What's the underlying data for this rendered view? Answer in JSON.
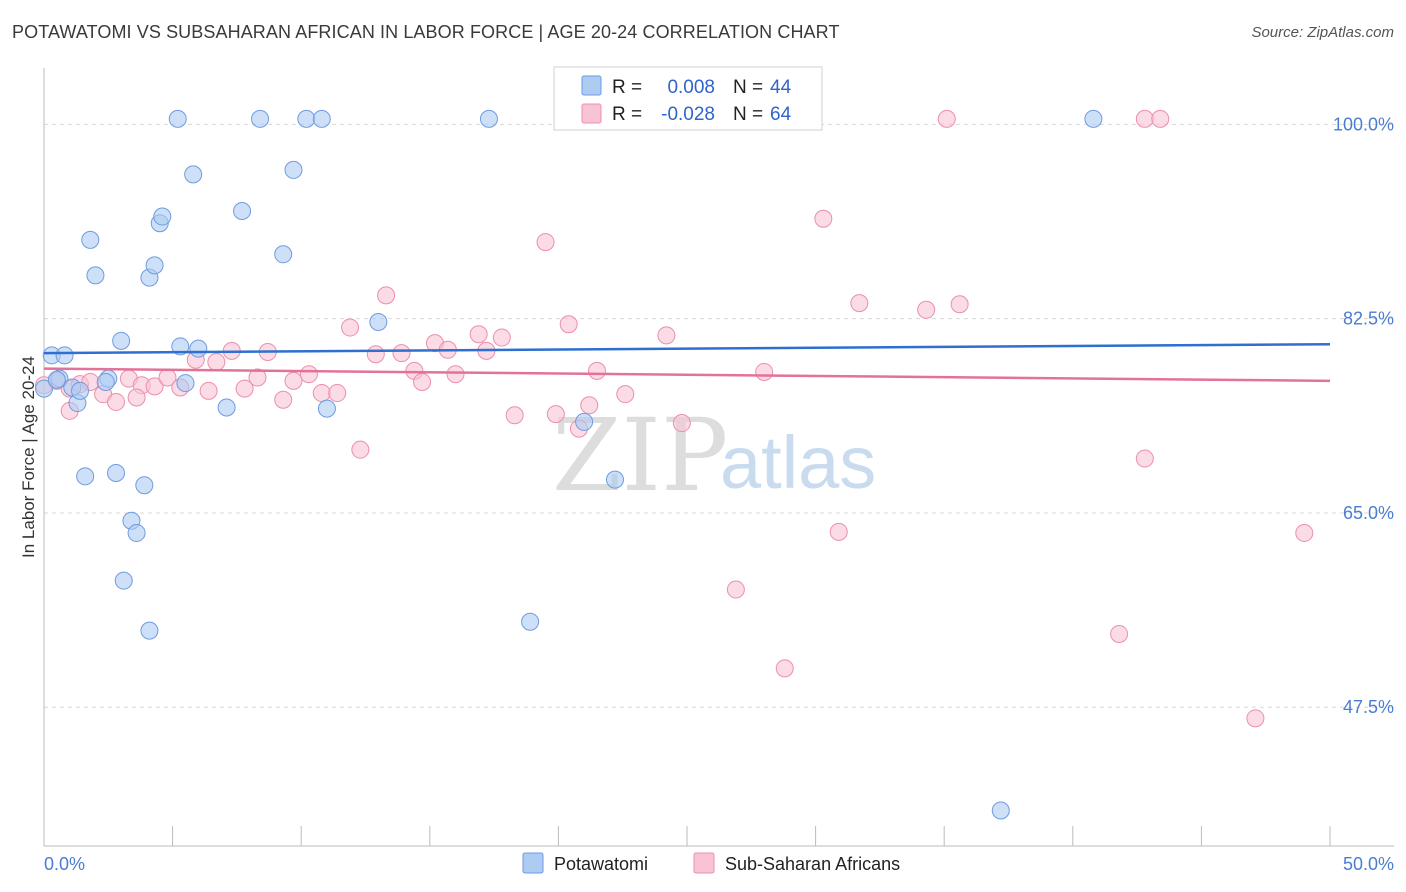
{
  "header": {
    "title": "POTAWATOMI VS SUBSAHARAN AFRICAN IN LABOR FORCE | AGE 20-24 CORRELATION CHART",
    "source": "Source: ZipAtlas.com"
  },
  "watermark": {
    "zip": "ZIP",
    "atlas": "atlas"
  },
  "legend": {
    "rows": [
      {
        "r_label": "R =",
        "r_value": "0.008",
        "n_label": "N =",
        "n_value": "44"
      },
      {
        "r_label": "R =",
        "r_value": "-0.028",
        "n_label": "N =",
        "n_value": "64"
      }
    ]
  },
  "chart_data": {
    "type": "scatter",
    "title": "POTAWATOMI VS SUBSAHARAN AFRICAN IN LABOR FORCE | AGE 20-24 CORRELATION CHART",
    "xlabel": "",
    "ylabel": "In Labor Force | Age 20-24",
    "xlim": [
      0,
      50
    ],
    "ylim": [
      35,
      104
    ],
    "x_tick_labels": [
      "0.0%",
      "50.0%"
    ],
    "y_ticks": [
      47.5,
      65.0,
      82.5,
      100.0
    ],
    "y_tick_labels": [
      "47.5%",
      "65.0%",
      "82.5%",
      "100.0%"
    ],
    "colors": {
      "potawatomi_fill": "#aecbf3",
      "potawatomi_stroke": "#6f9be0",
      "potawatomi_line": "#2e6fd0",
      "subsaharan_fill": "#f8c3d3",
      "subsaharan_stroke": "#ec8fab",
      "subsaharan_line": "#e2729a",
      "axis_label": "#4a7dd1"
    },
    "series": [
      {
        "name": "Potawatomi",
        "R": 0.008,
        "N": 44,
        "trend": {
          "x": [
            0,
            50
          ],
          "y": [
            79.4,
            80.2
          ]
        },
        "points": [
          [
            0.0,
            76.2
          ],
          [
            0.3,
            79.2
          ],
          [
            0.6,
            77.1
          ],
          [
            0.8,
            79.2
          ],
          [
            1.1,
            76.3
          ],
          [
            1.3,
            74.9
          ],
          [
            1.6,
            68.3
          ],
          [
            1.8,
            89.6
          ],
          [
            2.0,
            86.4
          ],
          [
            2.5,
            77.1
          ],
          [
            2.8,
            68.6
          ],
          [
            3.0,
            80.5
          ],
          [
            3.4,
            64.3
          ],
          [
            3.6,
            63.2
          ],
          [
            3.1,
            58.9
          ],
          [
            3.9,
            67.5
          ],
          [
            4.1,
            54.4
          ],
          [
            4.1,
            86.2
          ],
          [
            4.3,
            87.3
          ],
          [
            4.5,
            91.1
          ],
          [
            4.6,
            91.7
          ],
          [
            5.2,
            100.5
          ],
          [
            5.3,
            80.0
          ],
          [
            5.5,
            76.7
          ],
          [
            5.8,
            95.5
          ],
          [
            6.0,
            79.8
          ],
          [
            7.1,
            74.5
          ],
          [
            7.7,
            92.2
          ],
          [
            8.4,
            100.5
          ],
          [
            9.3,
            88.3
          ],
          [
            9.7,
            95.9
          ],
          [
            10.2,
            100.5
          ],
          [
            10.8,
            100.5
          ],
          [
            11.0,
            74.4
          ],
          [
            13.0,
            82.2
          ],
          [
            17.3,
            100.5
          ],
          [
            18.9,
            55.2
          ],
          [
            21.0,
            73.2
          ],
          [
            22.2,
            68.0
          ],
          [
            37.2,
            38.2
          ],
          [
            40.8,
            100.5
          ],
          [
            0.5,
            77.0
          ],
          [
            2.4,
            76.8
          ],
          [
            1.4,
            76.0
          ]
        ]
      },
      {
        "name": "Sub-Saharan Africans",
        "R": -0.028,
        "N": 64,
        "trend": {
          "x": [
            0,
            50
          ],
          "y": [
            78.0,
            76.9
          ]
        },
        "points": [
          [
            0.0,
            76.5
          ],
          [
            0.5,
            76.9
          ],
          [
            1.0,
            76.2
          ],
          [
            1.4,
            76.6
          ],
          [
            1.8,
            76.8
          ],
          [
            2.3,
            75.7
          ],
          [
            2.8,
            75.0
          ],
          [
            3.3,
            77.1
          ],
          [
            3.8,
            76.5
          ],
          [
            4.3,
            76.4
          ],
          [
            4.8,
            77.2
          ],
          [
            5.3,
            76.3
          ],
          [
            5.9,
            78.8
          ],
          [
            6.4,
            76.0
          ],
          [
            6.7,
            78.6
          ],
          [
            7.3,
            79.6
          ],
          [
            7.8,
            76.2
          ],
          [
            8.3,
            77.2
          ],
          [
            8.7,
            79.5
          ],
          [
            9.3,
            75.2
          ],
          [
            9.7,
            76.9
          ],
          [
            10.3,
            77.5
          ],
          [
            10.8,
            75.8
          ],
          [
            11.4,
            75.8
          ],
          [
            11.9,
            81.7
          ],
          [
            12.3,
            70.7
          ],
          [
            12.9,
            79.3
          ],
          [
            13.3,
            84.6
          ],
          [
            13.9,
            79.4
          ],
          [
            14.4,
            77.8
          ],
          [
            14.7,
            76.8
          ],
          [
            15.2,
            80.3
          ],
          [
            15.7,
            79.7
          ],
          [
            16.0,
            77.5
          ],
          [
            16.9,
            81.1
          ],
          [
            17.2,
            79.6
          ],
          [
            17.8,
            80.8
          ],
          [
            18.3,
            73.8
          ],
          [
            19.5,
            89.4
          ],
          [
            19.9,
            73.9
          ],
          [
            20.4,
            82.0
          ],
          [
            20.8,
            72.6
          ],
          [
            21.2,
            74.7
          ],
          [
            21.5,
            77.8
          ],
          [
            22.6,
            75.7
          ],
          [
            24.2,
            81.0
          ],
          [
            24.8,
            73.1
          ],
          [
            26.9,
            58.1
          ],
          [
            28.0,
            77.7
          ],
          [
            28.8,
            51.0
          ],
          [
            30.3,
            91.5
          ],
          [
            30.9,
            63.3
          ],
          [
            31.7,
            83.9
          ],
          [
            34.3,
            83.3
          ],
          [
            35.1,
            100.5
          ],
          [
            35.6,
            83.8
          ],
          [
            42.8,
            69.9
          ],
          [
            41.8,
            54.1
          ],
          [
            42.8,
            100.5
          ],
          [
            43.4,
            100.5
          ],
          [
            47.1,
            46.5
          ],
          [
            49.0,
            63.2
          ],
          [
            1.0,
            74.2
          ],
          [
            3.6,
            75.4
          ]
        ]
      }
    ]
  },
  "bottom_legend": {
    "items": [
      {
        "label": "Potawatomi"
      },
      {
        "label": "Sub-Saharan Africans"
      }
    ]
  }
}
